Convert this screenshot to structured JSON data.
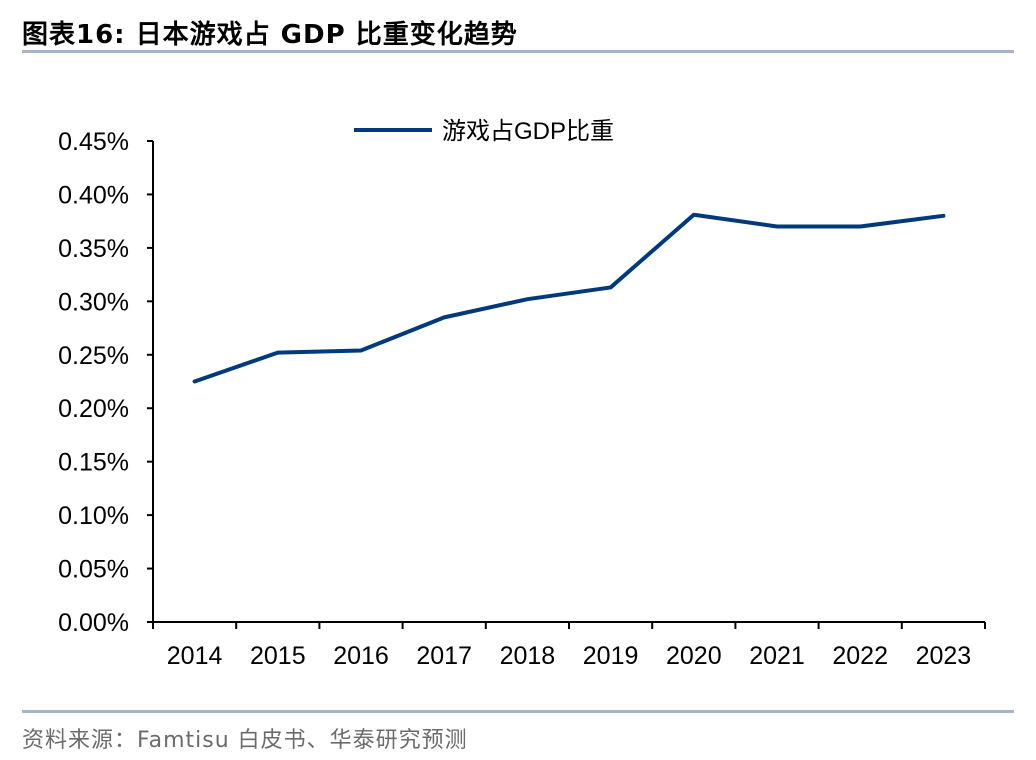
{
  "title": "图表16:  日本游戏占 GDP 比重变化趋势",
  "source": "资料来源：Famtisu 白皮书、华泰研究预测",
  "chart_data": {
    "type": "line",
    "categories": [
      "2014",
      "2015",
      "2016",
      "2017",
      "2018",
      "2019",
      "2020",
      "2021",
      "2022",
      "2023"
    ],
    "series": [
      {
        "name": "游戏占GDP比重",
        "values": [
          0.225,
          0.252,
          0.254,
          0.285,
          0.302,
          0.313,
          0.381,
          0.37,
          0.37,
          0.38
        ],
        "color": "#003a7d"
      }
    ],
    "ylim": [
      0,
      0.45
    ],
    "yticks": [
      "0.00%",
      "0.05%",
      "0.10%",
      "0.15%",
      "0.20%",
      "0.25%",
      "0.30%",
      "0.35%",
      "0.40%",
      "0.45%"
    ],
    "unit": "%",
    "grid": false,
    "legend": "top-center"
  }
}
